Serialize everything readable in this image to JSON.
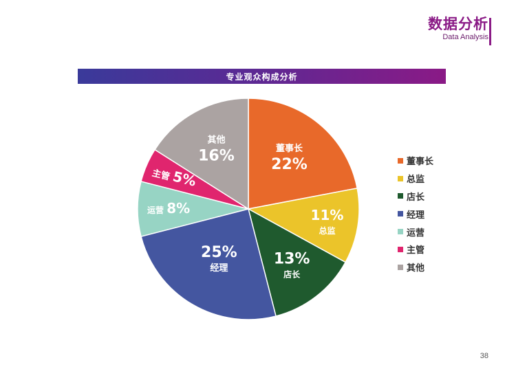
{
  "header": {
    "title": "数据分析",
    "subtitle": "Data Analysis"
  },
  "banner": {
    "title": "专业观众构成分析"
  },
  "chart_data": {
    "type": "pie",
    "title": "专业观众构成分析",
    "legend_position": "right",
    "slices": [
      {
        "label": "董事长",
        "value": 22,
        "percent_text": "22%",
        "color": "#e8692a"
      },
      {
        "label": "总监",
        "value": 11,
        "percent_text": "11%",
        "color": "#ebc42a"
      },
      {
        "label": "店长",
        "value": 13,
        "percent_text": "13%",
        "color": "#1f5a2e"
      },
      {
        "label": "经理",
        "value": 25,
        "percent_text": "25%",
        "color": "#4456a0"
      },
      {
        "label": "运营",
        "value": 8,
        "percent_text": "8%",
        "color": "#97d4c4"
      },
      {
        "label": "主管",
        "value": 5,
        "percent_text": "5%",
        "color": "#e0256e"
      },
      {
        "label": "其他",
        "value": 16,
        "percent_text": "16%",
        "color": "#aba3a2"
      }
    ]
  },
  "page_number": "38"
}
